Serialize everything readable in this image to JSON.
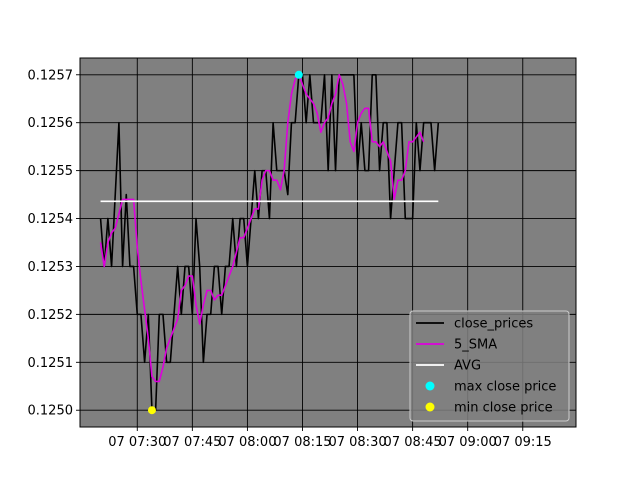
{
  "chart_data": {
    "type": "line",
    "title": "",
    "xlabel": "",
    "ylabel": "",
    "x_axis": {
      "start": "07 07:20",
      "end": "07 09:25",
      "interval_minutes": 1
    },
    "xticks": [
      "07 07:30",
      "07 07:45",
      "07 08:00",
      "07 08:15",
      "07 08:30",
      "07 08:45",
      "07 09:00",
      "07 09:15"
    ],
    "yticks": [
      "0.1250",
      "0.1251",
      "0.1252",
      "0.1253",
      "0.1254",
      "0.1255",
      "0.1256",
      "0.1257"
    ],
    "ylim": [
      0.124965,
      0.125735
    ],
    "grid": true,
    "legend_position": "lower-right",
    "series": [
      {
        "name": "close_prices",
        "color": "#000000",
        "start_minute": 0,
        "values": [
          0.1254,
          0.1253,
          0.1254,
          0.1253,
          0.12545,
          0.1256,
          0.1253,
          0.12545,
          0.1253,
          0.1253,
          0.1252,
          0.1252,
          0.1251,
          0.1252,
          0.125,
          0.125,
          0.1252,
          0.1252,
          0.1251,
          0.1251,
          0.1252,
          0.1253,
          0.1252,
          0.1253,
          0.1253,
          0.1252,
          0.1254,
          0.1253,
          0.1251,
          0.1252,
          0.1252,
          0.1253,
          0.1253,
          0.1252,
          0.1253,
          0.1253,
          0.1254,
          0.1253,
          0.1254,
          0.1254,
          0.1253,
          0.1254,
          0.1255,
          0.1254,
          0.1255,
          0.1255,
          0.1254,
          0.1256,
          0.1255,
          0.1255,
          0.1255,
          0.12545,
          0.1256,
          0.1256,
          0.1257,
          0.1257,
          0.1256,
          0.1257,
          0.1256,
          0.1256,
          0.1256,
          0.1257,
          0.1255,
          0.1257,
          0.1255,
          0.1257,
          0.1257,
          0.1257,
          0.1257,
          0.1257,
          0.1255,
          0.1256,
          0.1255,
          0.1255,
          0.1257,
          0.1257,
          0.1255,
          0.1256,
          0.1256,
          0.1254,
          0.1255,
          0.1256,
          0.1256,
          0.1254,
          0.1254,
          0.1254,
          0.1256,
          0.1255,
          0.1256,
          0.1256,
          0.1256,
          0.1255,
          0.1256
        ]
      },
      {
        "name": "5_SMA",
        "color": "#dd00dd",
        "start_minute": 0,
        "values": [
          0.12535,
          0.1253,
          0.12535,
          0.12537,
          0.12538,
          0.12541,
          0.12544,
          0.12544,
          0.12544,
          0.12544,
          0.12534,
          0.12527,
          0.12521,
          0.12515,
          0.12507,
          0.12506,
          0.12506,
          0.12509,
          0.12513,
          0.12515,
          0.12517,
          0.12519,
          0.12525,
          0.12526,
          0.12528,
          0.12528,
          0.12522,
          0.12518,
          0.12522,
          0.12525,
          0.12525,
          0.12523,
          0.12524,
          0.12524,
          0.12526,
          0.12528,
          0.1253,
          0.12533,
          0.12536,
          0.12536,
          0.12538,
          0.1254,
          0.12542,
          0.12542,
          0.12548,
          0.1255,
          0.1255,
          0.12548,
          0.12548,
          0.12546,
          0.1255,
          0.1256,
          0.12566,
          0.12569,
          0.1257,
          0.12568,
          0.12566,
          0.12565,
          0.12564,
          0.12562,
          0.12558,
          0.1256,
          0.12561,
          0.12564,
          0.12566,
          0.1257,
          0.12568,
          0.12564,
          0.12556,
          0.12554,
          0.1256,
          0.12562,
          0.12563,
          0.12563,
          0.12556,
          0.12556,
          0.12555,
          0.12556,
          0.12554,
          0.12552,
          0.12544,
          0.12548,
          0.12548,
          0.1255,
          0.12556,
          0.12556,
          0.12557,
          0.12558,
          0.12556
        ]
      },
      {
        "name": "AVG",
        "color": "#ffffff",
        "value": 0.125436
      }
    ],
    "markers": [
      {
        "name": "max close price",
        "color": "#00ffff",
        "minute": 54,
        "value": 0.1257
      },
      {
        "name": "min close price",
        "color": "#ffff00",
        "minute": 14,
        "value": 0.125
      }
    ]
  }
}
